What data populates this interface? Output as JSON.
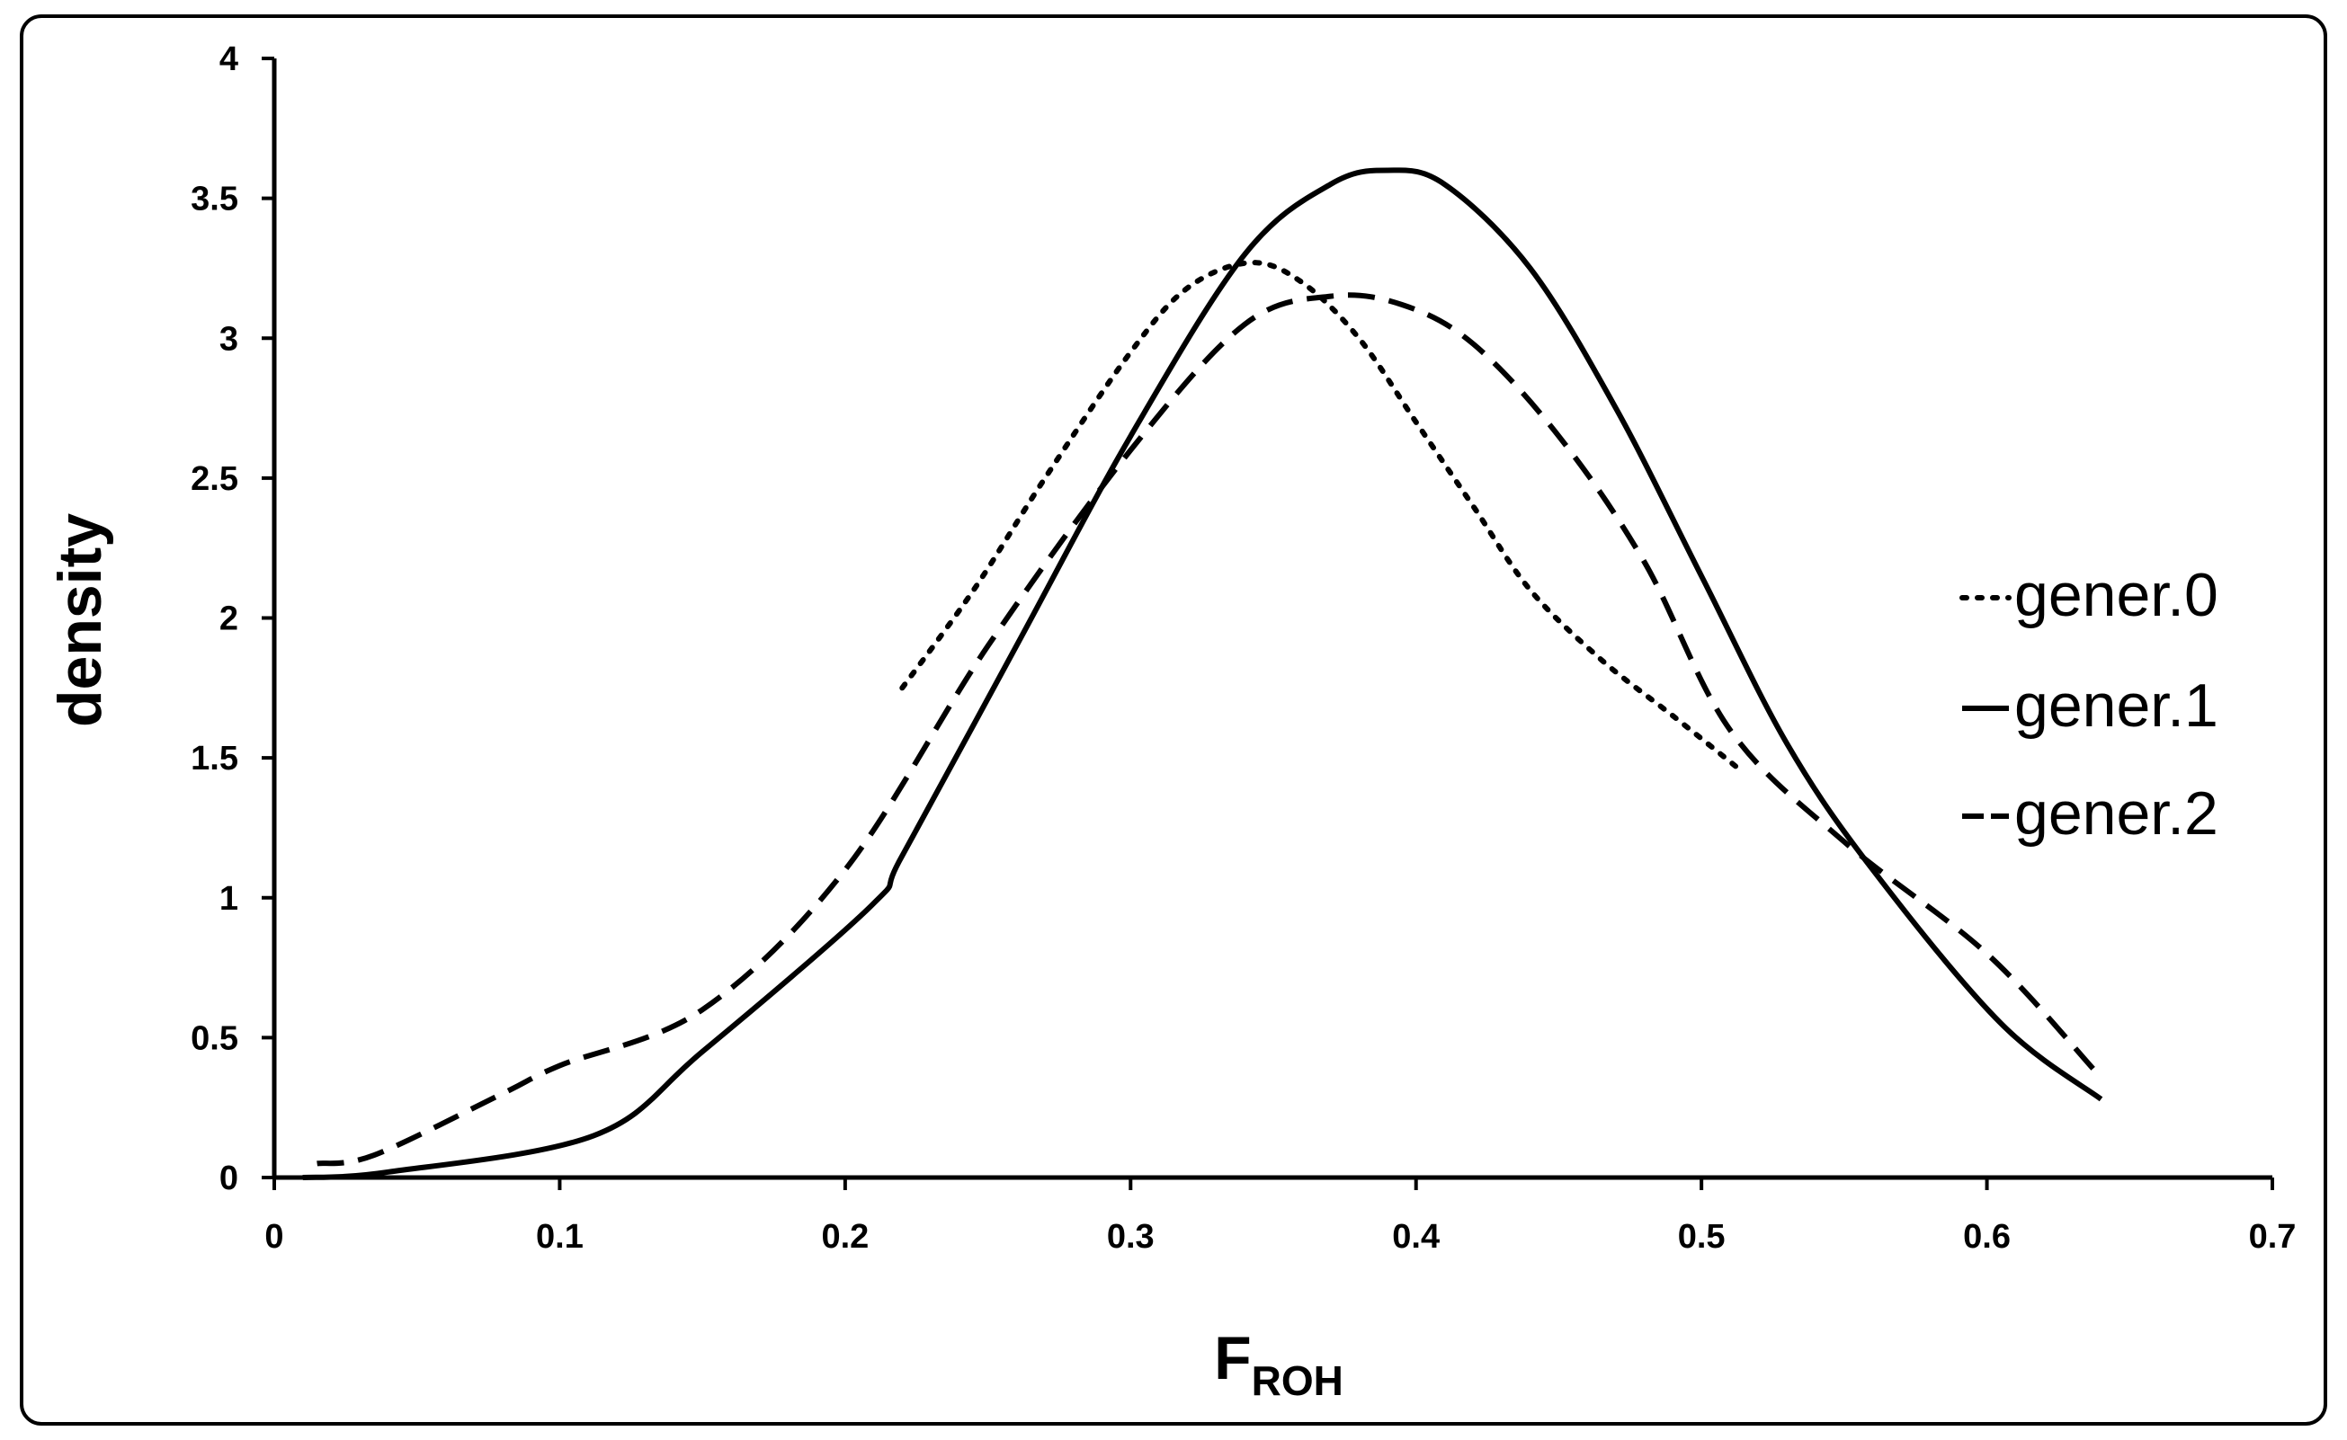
{
  "chart_data": {
    "type": "line",
    "xlabel_main": "F",
    "xlabel_sub": "ROH",
    "ylabel": "density",
    "xlim": [
      0,
      0.7
    ],
    "ylim": [
      0,
      4
    ],
    "x_ticks": [
      "0",
      "0.1",
      "0.2",
      "0.3",
      "0.4",
      "0.5",
      "0.6",
      "0.7"
    ],
    "y_ticks": [
      "0",
      "0.5",
      "1",
      "1.5",
      "2",
      "2.5",
      "3",
      "3.5",
      "4"
    ],
    "grid": false,
    "legend_position": "right",
    "series": [
      {
        "name": "gener.0",
        "style": "dotted",
        "points": [
          [
            0.22,
            1.75
          ],
          [
            0.245,
            2.1
          ],
          [
            0.27,
            2.5
          ],
          [
            0.3,
            2.95
          ],
          [
            0.32,
            3.18
          ],
          [
            0.342,
            3.27
          ],
          [
            0.36,
            3.2
          ],
          [
            0.38,
            3.0
          ],
          [
            0.4,
            2.7
          ],
          [
            0.42,
            2.4
          ],
          [
            0.44,
            2.1
          ],
          [
            0.465,
            1.85
          ],
          [
            0.49,
            1.65
          ],
          [
            0.512,
            1.47
          ]
        ]
      },
      {
        "name": "gener.1",
        "style": "solid",
        "points": [
          [
            0.01,
            0.0
          ],
          [
            0.04,
            0.02
          ],
          [
            0.112,
            0.15
          ],
          [
            0.15,
            0.45
          ],
          [
            0.209,
            0.97
          ],
          [
            0.22,
            1.15
          ],
          [
            0.26,
            1.9
          ],
          [
            0.3,
            2.65
          ],
          [
            0.34,
            3.3
          ],
          [
            0.37,
            3.55
          ],
          [
            0.39,
            3.6
          ],
          [
            0.41,
            3.55
          ],
          [
            0.44,
            3.25
          ],
          [
            0.47,
            2.75
          ],
          [
            0.5,
            2.15
          ],
          [
            0.53,
            1.55
          ],
          [
            0.56,
            1.1
          ],
          [
            0.605,
            0.55
          ],
          [
            0.64,
            0.28
          ]
        ]
      },
      {
        "name": "gener.2",
        "style": "dashed",
        "points": [
          [
            0.015,
            0.05
          ],
          [
            0.035,
            0.08
          ],
          [
            0.08,
            0.3
          ],
          [
            0.1,
            0.4
          ],
          [
            0.15,
            0.6
          ],
          [
            0.2,
            1.1
          ],
          [
            0.25,
            1.9
          ],
          [
            0.3,
            2.6
          ],
          [
            0.34,
            3.05
          ],
          [
            0.37,
            3.15
          ],
          [
            0.395,
            3.12
          ],
          [
            0.42,
            2.98
          ],
          [
            0.45,
            2.65
          ],
          [
            0.48,
            2.2
          ],
          [
            0.51,
            1.6
          ],
          [
            0.55,
            1.2
          ],
          [
            0.6,
            0.8
          ],
          [
            0.638,
            0.38
          ]
        ]
      }
    ]
  }
}
